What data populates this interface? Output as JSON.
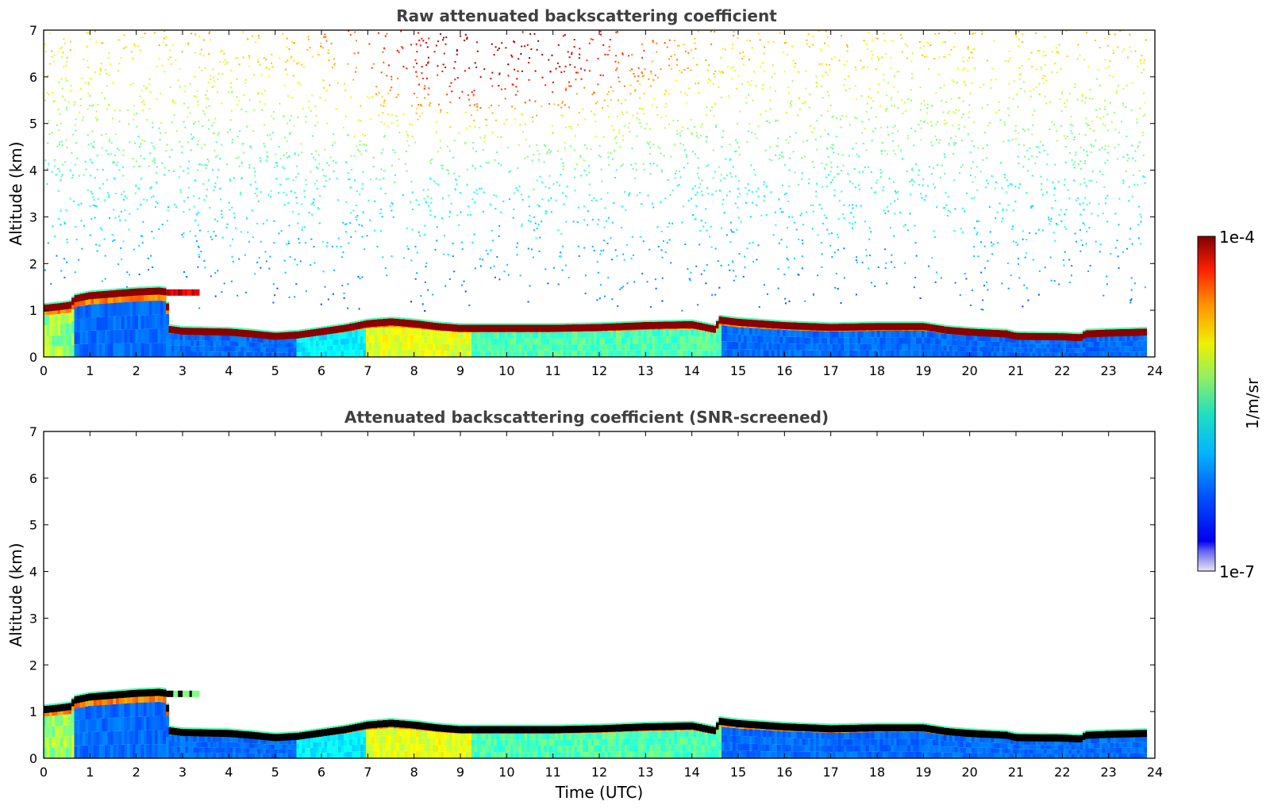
{
  "chart_data": [
    {
      "type": "heatmap",
      "title": "Raw attenuated backscattering coefficient",
      "xlabel": "",
      "ylabel": "Altitude (km)",
      "xlim": [
        0,
        24
      ],
      "ylim": [
        0,
        7
      ],
      "xticks": [
        "0",
        "1",
        "2",
        "3",
        "4",
        "5",
        "6",
        "7",
        "8",
        "9",
        "10",
        "11",
        "12",
        "13",
        "14",
        "15",
        "16",
        "17",
        "18",
        "19",
        "20",
        "21",
        "22",
        "23",
        "24"
      ],
      "yticks": [
        "0",
        "1",
        "2",
        "3",
        "4",
        "5",
        "6",
        "7"
      ],
      "screened": false,
      "boundary_layer_top_km": [
        [
          0.0,
          1.05
        ],
        [
          0.3,
          1.08
        ],
        [
          0.6,
          1.12
        ],
        [
          0.65,
          1.25
        ],
        [
          1.0,
          1.32
        ],
        [
          1.5,
          1.36
        ],
        [
          2.0,
          1.4
        ],
        [
          2.5,
          1.42
        ],
        [
          2.65,
          1.4
        ],
        [
          2.7,
          0.6
        ],
        [
          3.0,
          0.56
        ],
        [
          3.5,
          0.55
        ],
        [
          4.0,
          0.54
        ],
        [
          4.5,
          0.5
        ],
        [
          5.0,
          0.45
        ],
        [
          5.5,
          0.48
        ],
        [
          6.0,
          0.55
        ],
        [
          6.5,
          0.62
        ],
        [
          7.0,
          0.72
        ],
        [
          7.5,
          0.76
        ],
        [
          8.0,
          0.72
        ],
        [
          8.5,
          0.66
        ],
        [
          9.0,
          0.62
        ],
        [
          10.0,
          0.62
        ],
        [
          11.0,
          0.62
        ],
        [
          12.0,
          0.64
        ],
        [
          13.0,
          0.68
        ],
        [
          14.0,
          0.7
        ],
        [
          14.5,
          0.6
        ],
        [
          14.6,
          0.8
        ],
        [
          15.0,
          0.75
        ],
        [
          16.0,
          0.68
        ],
        [
          17.0,
          0.64
        ],
        [
          18.0,
          0.66
        ],
        [
          19.0,
          0.66
        ],
        [
          19.5,
          0.58
        ],
        [
          20.0,
          0.54
        ],
        [
          20.8,
          0.5
        ],
        [
          21.0,
          0.45
        ],
        [
          22.0,
          0.44
        ],
        [
          22.4,
          0.42
        ],
        [
          22.5,
          0.5
        ],
        [
          23.0,
          0.52
        ],
        [
          23.8,
          0.54
        ]
      ],
      "isolated_layer_km": {
        "start": 2.65,
        "end": 3.3,
        "altitude": 1.38
      }
    },
    {
      "type": "heatmap",
      "title": "Attenuated backscattering coefficient (SNR-screened)",
      "xlabel": "Time (UTC)",
      "ylabel": "Altitude (km)",
      "xlim": [
        0,
        24
      ],
      "ylim": [
        0,
        7
      ],
      "xticks": [
        "0",
        "1",
        "2",
        "3",
        "4",
        "5",
        "6",
        "7",
        "8",
        "9",
        "10",
        "11",
        "12",
        "13",
        "14",
        "15",
        "16",
        "17",
        "18",
        "19",
        "20",
        "21",
        "22",
        "23",
        "24"
      ],
      "yticks": [
        "0",
        "1",
        "2",
        "3",
        "4",
        "5",
        "6",
        "7"
      ],
      "screened": true
    }
  ],
  "colorbar": {
    "max_label": "1e-4",
    "min_label": "1e-7",
    "unit_label": "1/m/sr",
    "colormap": "jet",
    "scale": "log"
  }
}
